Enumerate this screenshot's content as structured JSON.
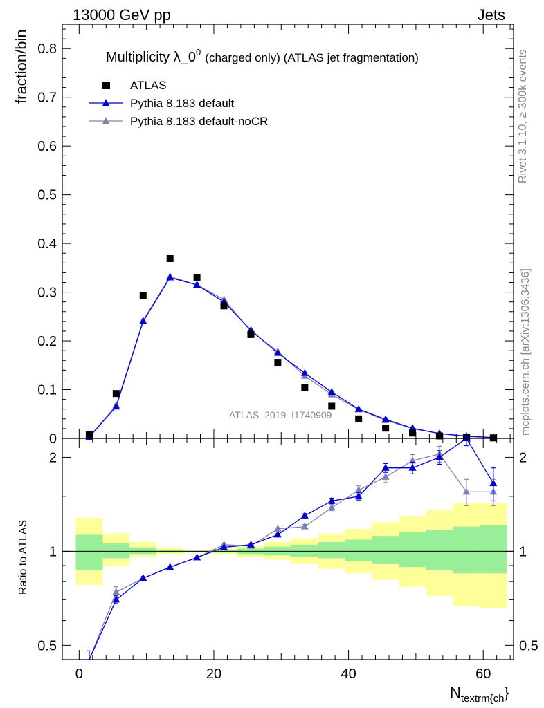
{
  "header": {
    "energy_label": "13000 GeV pp",
    "process_label": "Jets"
  },
  "side_labels": {
    "rivet": "Rivet 3.1.10, ≥ 300k events",
    "mcplots": "mcplots.cern.ch [arXiv:1306.3436]"
  },
  "watermark": "ATLAS_2019_I1740909",
  "chart_data": {
    "type": "scatter",
    "title_main": "Multiplicity λ_0",
    "title_sup": "0",
    "title_rest": "(charged only) (ATLAS jet fragmentation)",
    "xlabel_main": "N",
    "xlabel_sub": "textrm{ch",
    "xlabel_tail": "}",
    "ylabel": "fraction/bin",
    "ratio_ylabel": "Ratio to ATLAS",
    "xlim": [
      -2.5,
      64.5
    ],
    "ylim": [
      0,
      0.85
    ],
    "ratio_ylim": [
      0.45,
      2.3
    ],
    "x_ticks": [
      0,
      20,
      40,
      60
    ],
    "x_tick_labels": [
      "0",
      "20",
      "40",
      "60"
    ],
    "y_ticks": [
      0,
      0.1,
      0.2,
      0.3,
      0.4,
      0.5,
      0.6,
      0.7,
      0.8
    ],
    "y_tick_labels": [
      "0",
      "0.1",
      "0.2",
      "0.3",
      "0.4",
      "0.5",
      "0.6",
      "0.7",
      "0.8"
    ],
    "ratio_ticks": [
      0.5,
      1,
      2
    ],
    "ratio_tick_labels": [
      "0.5",
      "1",
      "2"
    ],
    "bin_edges": [
      -0.5,
      3.5,
      7.5,
      11.5,
      15.5,
      19.5,
      23.5,
      27.5,
      31.5,
      35.5,
      39.5,
      43.5,
      47.5,
      51.5,
      55.5,
      59.5,
      63.5
    ],
    "x": [
      1.5,
      5.5,
      9.5,
      13.5,
      17.5,
      21.5,
      25.5,
      29.5,
      33.5,
      37.5,
      41.5,
      45.5,
      49.5,
      53.5,
      57.5,
      61.5
    ],
    "legend": [
      "ATLAS",
      "Pythia 8.183 default",
      "Pythia 8.183 default-noCR"
    ],
    "series": [
      {
        "name": "ATLAS",
        "color": "#000000",
        "marker": "square",
        "values": [
          0.008,
          0.092,
          0.293,
          0.369,
          0.33,
          0.272,
          0.213,
          0.156,
          0.105,
          0.066,
          0.04,
          0.021,
          0.011,
          0.005,
          0.002,
          0.001
        ]
      },
      {
        "name": "Pythia 8.183 default",
        "color": "#0000cc",
        "marker": "triangle",
        "values": [
          0.003,
          0.065,
          0.24,
          0.33,
          0.315,
          0.28,
          0.222,
          0.175,
          0.134,
          0.095,
          0.06,
          0.039,
          0.021,
          0.01,
          0.0045,
          0.0018
        ],
        "ratio": [
          0.42,
          0.7,
          0.82,
          0.89,
          0.955,
          1.03,
          1.05,
          1.13,
          1.3,
          1.45,
          1.5,
          1.85,
          1.85,
          2.0,
          2.3,
          1.65
        ],
        "ratio_err": [
          0.06,
          0.02,
          0.01,
          0.005,
          0.005,
          0.005,
          0.01,
          0.01,
          0.02,
          0.03,
          0.04,
          0.06,
          0.08,
          0.1,
          0.12,
          0.2
        ]
      },
      {
        "name": "Pythia 8.183 default-noCR",
        "color": "#8080b8",
        "marker": "triangle",
        "values": [
          0.002,
          0.068,
          0.242,
          0.332,
          0.315,
          0.285,
          0.22,
          0.178,
          0.128,
          0.09,
          0.059,
          0.037,
          0.02,
          0.01,
          0.004,
          0.0016
        ],
        "ratio": [
          0.3,
          0.74,
          0.82,
          0.89,
          0.955,
          1.05,
          1.04,
          1.18,
          1.2,
          1.38,
          1.57,
          1.73,
          1.95,
          2.05,
          1.55,
          1.55
        ],
        "ratio_err": [
          0.06,
          0.03,
          0.01,
          0.005,
          0.005,
          0.01,
          0.01,
          0.01,
          0.02,
          0.03,
          0.05,
          0.07,
          0.09,
          0.12,
          0.15,
          0.15
        ]
      }
    ],
    "uncertainty_bands": {
      "inner_color": "#99ee99",
      "outer_color": "#ffff99",
      "inner_low": [
        0.87,
        0.95,
        0.98,
        0.99,
        0.995,
        0.99,
        0.98,
        0.97,
        0.96,
        0.95,
        0.93,
        0.91,
        0.89,
        0.87,
        0.85,
        0.85
      ],
      "inner_high": [
        1.13,
        1.06,
        1.03,
        1.01,
        1.005,
        1.01,
        1.02,
        1.035,
        1.05,
        1.07,
        1.09,
        1.12,
        1.15,
        1.17,
        1.2,
        1.21
      ],
      "outer_low": [
        0.78,
        0.9,
        0.96,
        0.98,
        0.99,
        0.98,
        0.96,
        0.94,
        0.91,
        0.88,
        0.85,
        0.81,
        0.77,
        0.72,
        0.67,
        0.66
      ],
      "outer_high": [
        1.28,
        1.14,
        1.07,
        1.03,
        1.01,
        1.02,
        1.04,
        1.07,
        1.1,
        1.14,
        1.18,
        1.24,
        1.3,
        1.36,
        1.43,
        1.43
      ]
    }
  }
}
